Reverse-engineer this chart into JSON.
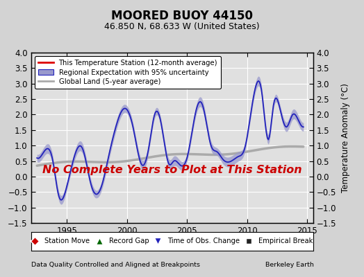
{
  "title": "MOORED BUOY 44150",
  "subtitle": "46.850 N, 68.633 W (United States)",
  "ylabel": "Temperature Anomaly (°C)",
  "xlabel_left": "Data Quality Controlled and Aligned at Breakpoints",
  "xlabel_right": "Berkeley Earth",
  "annotation": "No Complete Years to Plot at This Station",
  "ylim": [
    -1.5,
    4.0
  ],
  "xlim": [
    1992.0,
    2015.5
  ],
  "yticks": [
    -1.5,
    -1.0,
    -0.5,
    0.0,
    0.5,
    1.0,
    1.5,
    2.0,
    2.5,
    3.0,
    3.5,
    4.0
  ],
  "xticks": [
    1995,
    2000,
    2005,
    2010,
    2015
  ],
  "bg_color": "#d3d3d3",
  "plot_bg_color": "#e0e0e0",
  "grid_color": "#ffffff",
  "regional_color": "#2222bb",
  "regional_fill_color": "#9999cc",
  "global_color": "#aaaaaa",
  "station_color": "#dd0000",
  "annotation_color": "#cc0000",
  "legend_box_color": "#ffffff"
}
